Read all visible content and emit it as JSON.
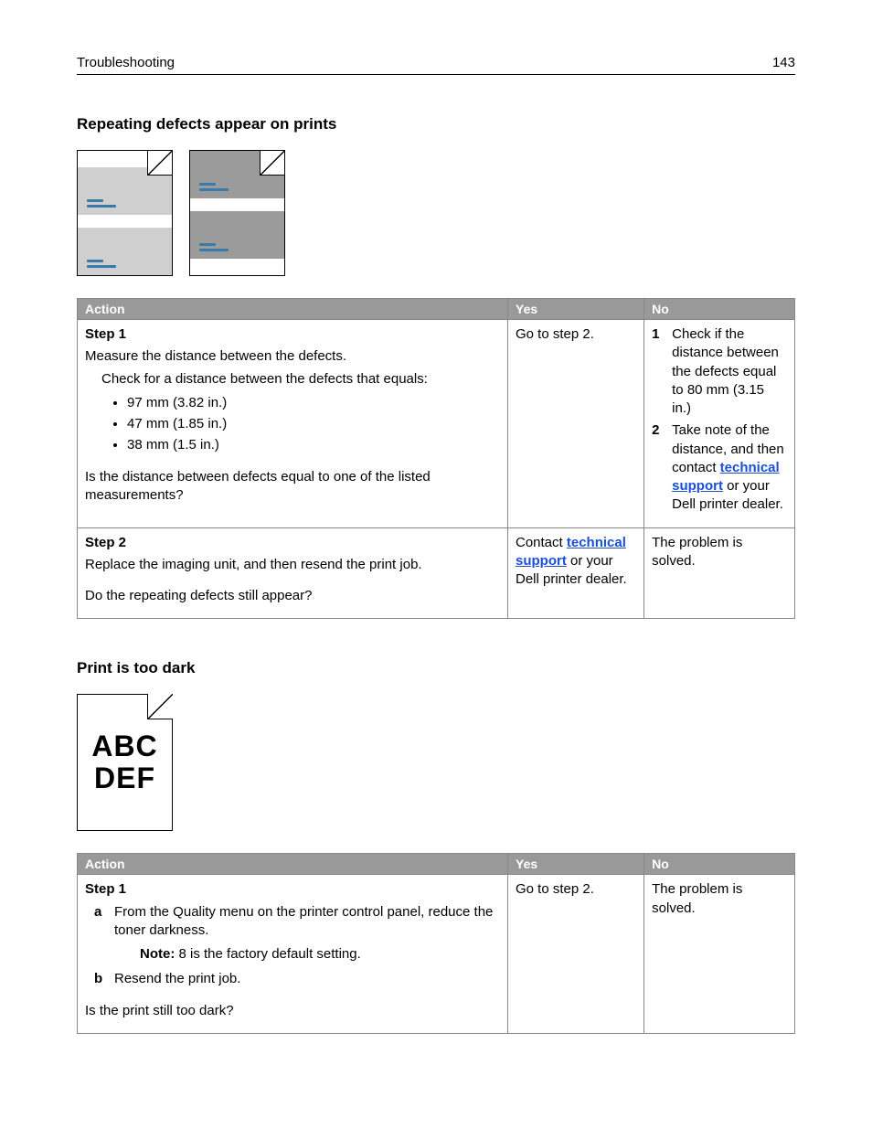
{
  "header": {
    "section": "Troubleshooting",
    "page_number": "143"
  },
  "section1": {
    "title": "Repeating defects appear on prints",
    "illustration": {
      "pages": [
        {
          "leading": true,
          "bands": [
            "light",
            "light"
          ]
        },
        {
          "leading": false,
          "bands": [
            "dark",
            "dark"
          ]
        }
      ],
      "streak_color": "#3a7aa8"
    },
    "table": {
      "headers": {
        "action": "Action",
        "yes": "Yes",
        "no": "No"
      },
      "rows": [
        {
          "step": "Step 1",
          "action_line": "Measure the distance between the defects.",
          "sub_line": "Check for a distance between the defects that equals:",
          "bullets": [
            "97 mm (3.82 in.)",
            "47 mm (1.85 in.)",
            "38 mm (1.5 in.)"
          ],
          "question": "Is the distance between defects equal to one of the listed measurements?",
          "yes": "Go to step 2.",
          "no": {
            "items": [
              "Check if the distance between the defects equal to 80 mm (3.15 in.)",
              {
                "pre": "Take note of the distance, and then contact ",
                "link": "technical support",
                "post": " or your Dell printer dealer."
              }
            ]
          }
        },
        {
          "step": "Step 2",
          "action_line": "Replace the imaging unit, and then resend the print job.",
          "question": "Do the repeating defects still appear?",
          "yes": {
            "pre": "Contact ",
            "link": "technical support",
            "post": " or your Dell printer dealer."
          },
          "no_text": "The problem is solved."
        }
      ]
    }
  },
  "section2": {
    "title": "Print is too dark",
    "illustration": {
      "line1": "ABC",
      "line2": "DEF"
    },
    "table": {
      "headers": {
        "action": "Action",
        "yes": "Yes",
        "no": "No"
      },
      "row": {
        "step": "Step 1",
        "alpha": [
          {
            "letter": "a",
            "text": "From the Quality menu on the printer control panel, reduce the toner darkness.",
            "note_label": "Note:",
            "note_text": " 8 is the factory default setting."
          },
          {
            "letter": "b",
            "text": "Resend the print job."
          }
        ],
        "question": "Is the print still too dark?",
        "yes": "Go to step 2.",
        "no": "The problem is solved."
      }
    }
  },
  "links": {
    "tech_support": "technical support"
  }
}
